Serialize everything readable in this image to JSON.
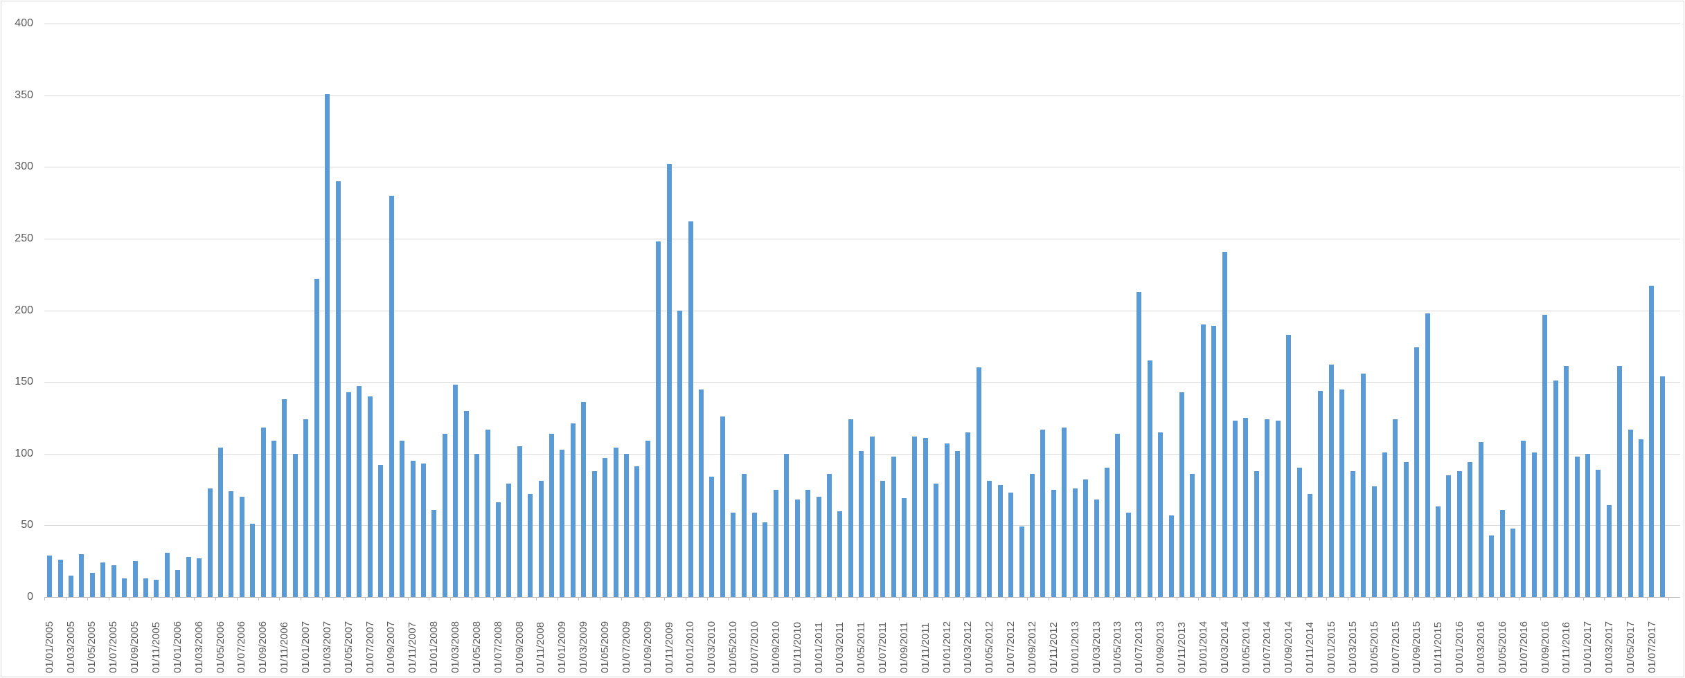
{
  "chart": {
    "accent_color": "#5B9BD5",
    "gridline_color": "#D9D9D9",
    "axis_line_color": "#BFBFBF",
    "label_color": "#595959",
    "border_color": "#D9D9D9",
    "background_color": "#FFFFFF"
  },
  "chart_data": {
    "type": "bar",
    "title": "",
    "xlabel": "",
    "ylabel": "",
    "ylim": [
      0,
      400
    ],
    "ytick_step": 50,
    "yticks": [
      400,
      350,
      300,
      250,
      200,
      150,
      100,
      50,
      0
    ],
    "grid": true,
    "legend": false,
    "x_label_shown_every": 2,
    "x": [
      "01/01/2005",
      "01/02/2005",
      "01/03/2005",
      "01/04/2005",
      "01/05/2005",
      "01/06/2005",
      "01/07/2005",
      "01/08/2005",
      "01/09/2005",
      "01/10/2005",
      "01/11/2005",
      "01/12/2005",
      "01/01/2006",
      "01/02/2006",
      "01/03/2006",
      "01/04/2006",
      "01/05/2006",
      "01/06/2006",
      "01/07/2006",
      "01/08/2006",
      "01/09/2006",
      "01/10/2006",
      "01/11/2006",
      "01/12/2006",
      "01/01/2007",
      "01/02/2007",
      "01/03/2007",
      "01/04/2007",
      "01/05/2007",
      "01/06/2007",
      "01/07/2007",
      "01/08/2007",
      "01/09/2007",
      "01/10/2007",
      "01/11/2007",
      "01/12/2007",
      "01/01/2008",
      "01/02/2008",
      "01/03/2008",
      "01/04/2008",
      "01/05/2008",
      "01/06/2008",
      "01/07/2008",
      "01/08/2008",
      "01/09/2008",
      "01/10/2008",
      "01/11/2008",
      "01/12/2008",
      "01/01/2009",
      "01/02/2009",
      "01/03/2009",
      "01/04/2009",
      "01/05/2009",
      "01/06/2009",
      "01/07/2009",
      "01/08/2009",
      "01/09/2009",
      "01/10/2009",
      "01/11/2009",
      "01/12/2009",
      "01/01/2010",
      "01/02/2010",
      "01/03/2010",
      "01/04/2010",
      "01/05/2010",
      "01/06/2010",
      "01/07/2010",
      "01/08/2010",
      "01/09/2010",
      "01/10/2010",
      "01/11/2010",
      "01/12/2010",
      "01/01/2011",
      "01/02/2011",
      "01/03/2011",
      "01/04/2011",
      "01/05/2011",
      "01/06/2011",
      "01/07/2011",
      "01/08/2011",
      "01/09/2011",
      "01/10/2011",
      "01/11/2011",
      "01/12/2011",
      "01/01/2012",
      "01/02/2012",
      "01/03/2012",
      "01/04/2012",
      "01/05/2012",
      "01/06/2012",
      "01/07/2012",
      "01/08/2012",
      "01/09/2012",
      "01/10/2012",
      "01/11/2012",
      "01/12/2012",
      "01/01/2013",
      "01/02/2013",
      "01/03/2013",
      "01/04/2013",
      "01/05/2013",
      "01/06/2013",
      "01/07/2013",
      "01/08/2013",
      "01/09/2013",
      "01/10/2013",
      "01/11/2013",
      "01/12/2013",
      "01/01/2014",
      "01/02/2014",
      "01/03/2014",
      "01/04/2014",
      "01/05/2014",
      "01/06/2014",
      "01/07/2014",
      "01/08/2014",
      "01/09/2014",
      "01/10/2014",
      "01/11/2014",
      "01/12/2014",
      "01/01/2015",
      "01/02/2015",
      "01/03/2015",
      "01/04/2015",
      "01/05/2015",
      "01/06/2015",
      "01/07/2015",
      "01/08/2015",
      "01/09/2015",
      "01/10/2015",
      "01/11/2015",
      "01/12/2015",
      "01/01/2016",
      "01/02/2016",
      "01/03/2016",
      "01/04/2016",
      "01/05/2016",
      "01/06/2016",
      "01/07/2016",
      "01/08/2016",
      "01/09/2016",
      "01/10/2016",
      "01/11/2016",
      "01/12/2016",
      "01/01/2017",
      "01/02/2017",
      "01/03/2017",
      "01/04/2017",
      "01/05/2017",
      "01/06/2017",
      "01/07/2017",
      "01/08/2017"
    ],
    "values": [
      29,
      26,
      15,
      30,
      17,
      24,
      22,
      13,
      25,
      13,
      12,
      31,
      19,
      28,
      27,
      76,
      104,
      74,
      70,
      51,
      118,
      109,
      138,
      100,
      124,
      222,
      351,
      290,
      143,
      147,
      140,
      92,
      280,
      109,
      95,
      93,
      61,
      114,
      148,
      130,
      100,
      117,
      66,
      79,
      105,
      72,
      81,
      114,
      103,
      121,
      136,
      88,
      97,
      104,
      100,
      91,
      109,
      248,
      302,
      200,
      262,
      145,
      84,
      126,
      59,
      86,
      59,
      52,
      75,
      100,
      68,
      75,
      70,
      86,
      60,
      124,
      102,
      112,
      81,
      98,
      69,
      112,
      111,
      79,
      107,
      102,
      115,
      160,
      81,
      78,
      73,
      49,
      86,
      117,
      75,
      118,
      76,
      82,
      68,
      90,
      114,
      59,
      213,
      165,
      115,
      57,
      143,
      86,
      190,
      189,
      241,
      123,
      125,
      88,
      124,
      123,
      183,
      90,
      72,
      144,
      162,
      145,
      88,
      156,
      77,
      101,
      124,
      94,
      174,
      198,
      63,
      85,
      88,
      94,
      108,
      43,
      61,
      48,
      109,
      101,
      197,
      151,
      161,
      98,
      100,
      89,
      64,
      161,
      117,
      110,
      217,
      154
    ]
  }
}
